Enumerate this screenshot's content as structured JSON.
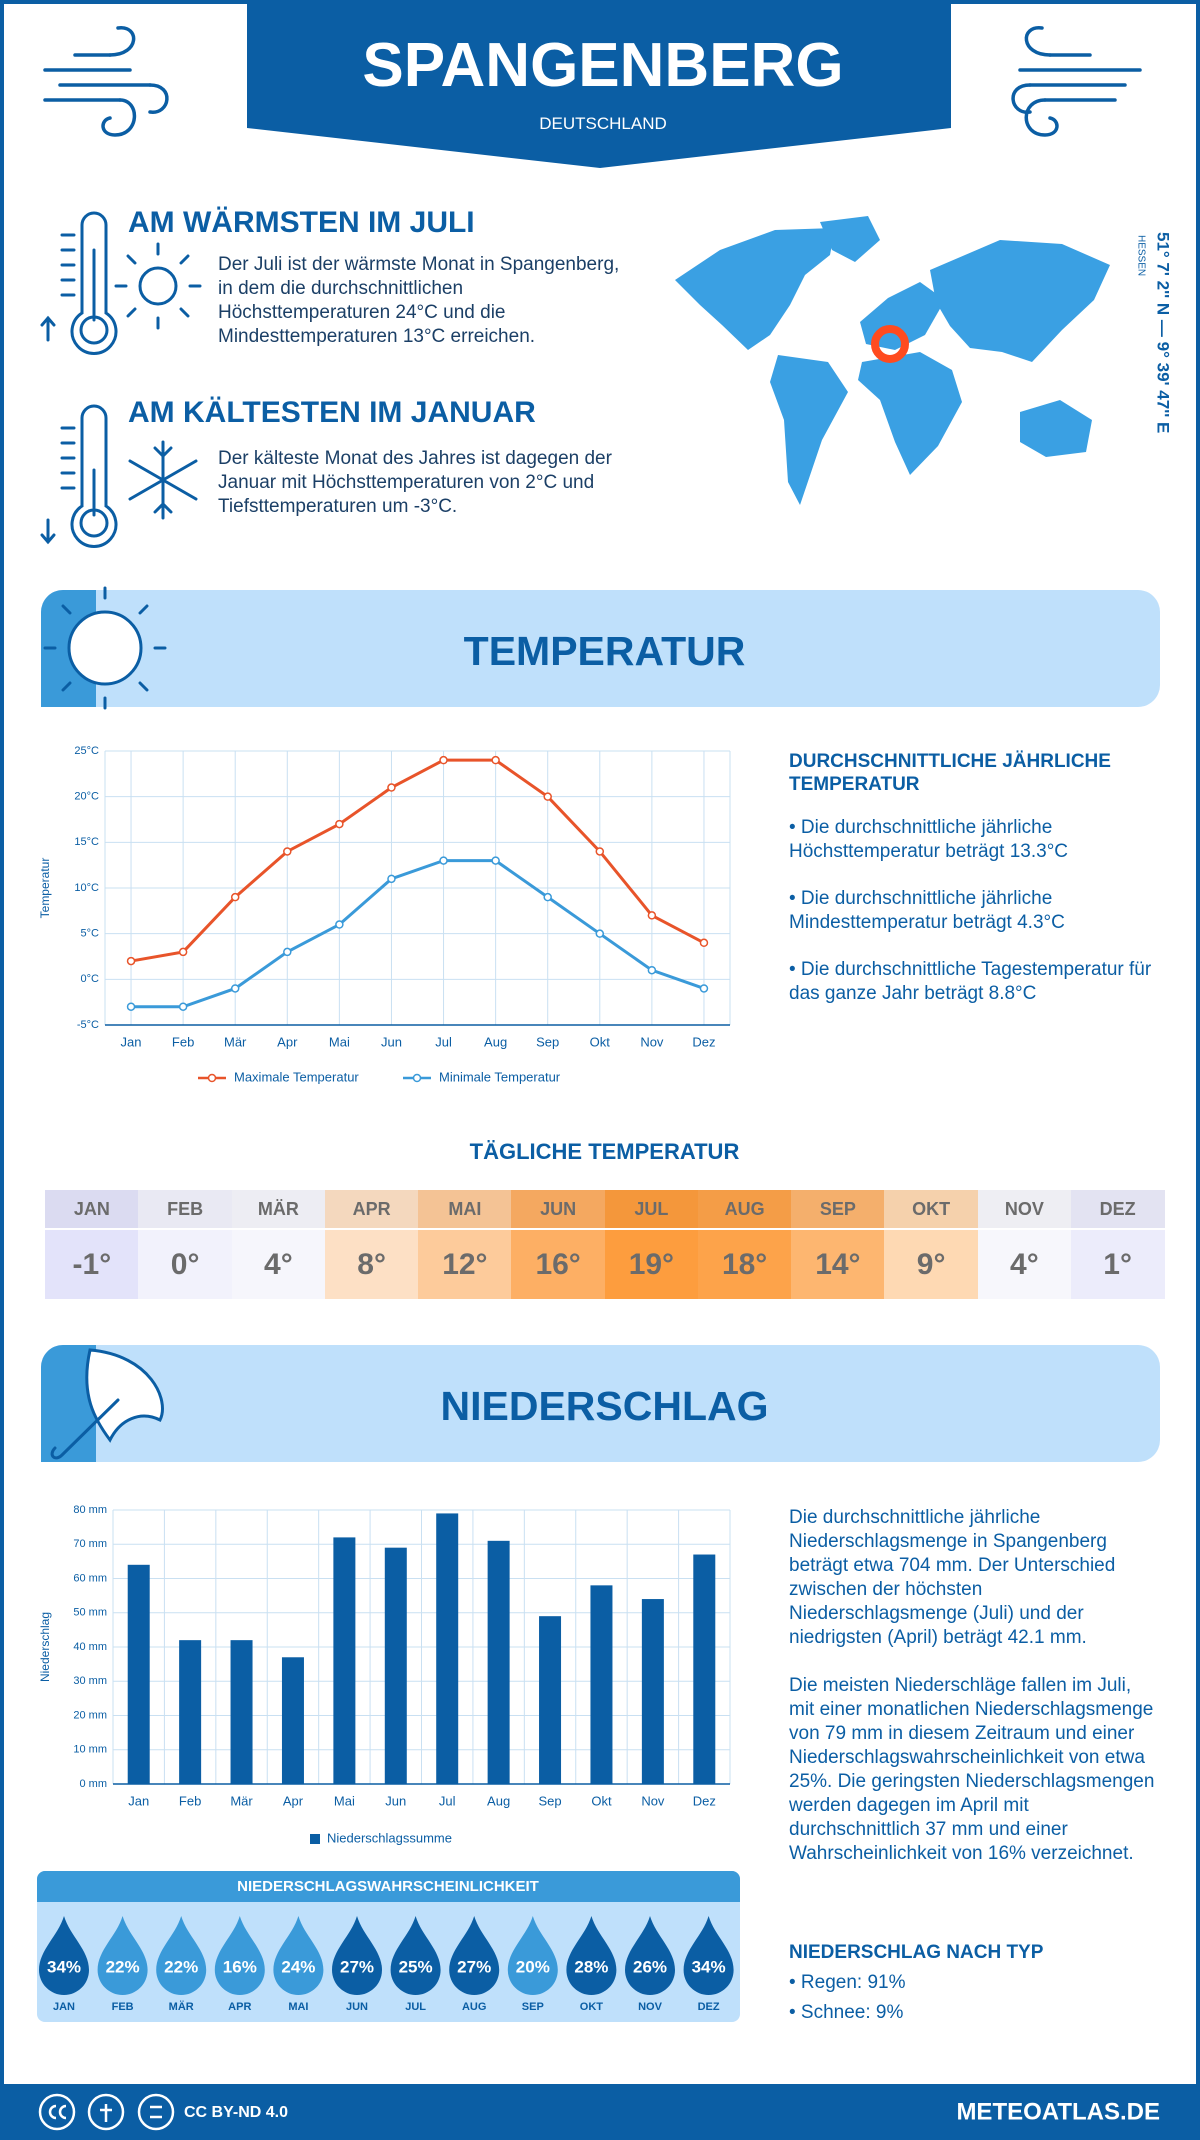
{
  "header": {
    "title": "SPANGENBERG",
    "subtitle": "DEUTSCHLAND"
  },
  "location": {
    "coordinates": "51° 7' 2'' N — 9° 39' 47'' E",
    "region": "HESSEN"
  },
  "warmest": {
    "title": "AM WÄRMSTEN IM JULI",
    "text": "Der Juli ist der wärmste Monat in Spangenberg, in dem die durchschnittlichen Höchsttemperaturen 24°C und die Mindesttemperaturen 13°C erreichen."
  },
  "coldest": {
    "title": "AM KÄLTESTEN IM JANUAR",
    "text": "Der kälteste Monat des Jahres ist dagegen der Januar mit Höchsttemperaturen von 2°C und Tiefsttemperaturen um -3°C."
  },
  "temperature_section": {
    "title": "TEMPERATUR",
    "summary_title": "DURCHSCHNITTLICHE JÄHRLICHE TEMPERATUR",
    "summary_items": [
      "• Die durchschnittliche jährliche Höchsttemperatur beträgt 13.3°C",
      "• Die durchschnittliche jährliche Mindesttemperatur beträgt 4.3°C",
      "• Die durchschnittliche Tagestemperatur für das ganze Jahr beträgt 8.8°C"
    ]
  },
  "chart_data": [
    {
      "type": "line",
      "ylabel": "Temperatur",
      "categories": [
        "Jan",
        "Feb",
        "Mär",
        "Apr",
        "Mai",
        "Jun",
        "Jul",
        "Aug",
        "Sep",
        "Okt",
        "Nov",
        "Dez"
      ],
      "series": [
        {
          "name": "Maximale Temperatur",
          "color": "#e8542a",
          "values": [
            2,
            3,
            9,
            14,
            17,
            21,
            24,
            24,
            20,
            14,
            7,
            4
          ]
        },
        {
          "name": "Minimale Temperatur",
          "color": "#3a9ad9",
          "values": [
            -3,
            -3,
            -1,
            3,
            6,
            11,
            13,
            13,
            9,
            5,
            1,
            -1
          ]
        }
      ],
      "ylim": [
        -5,
        25
      ],
      "yticks": [
        {
          "value": -5,
          "label": "-5°C"
        },
        {
          "value": 0,
          "label": "0°C"
        },
        {
          "value": 5,
          "label": "5°C"
        },
        {
          "value": 10,
          "label": "10°C"
        },
        {
          "value": 15,
          "label": "15°C"
        },
        {
          "value": 20,
          "label": "20°C"
        },
        {
          "value": 25,
          "label": "25°C"
        }
      ],
      "grid": true
    },
    {
      "type": "bar",
      "ylabel": "Niederschlag",
      "categories": [
        "Jan",
        "Feb",
        "Mär",
        "Apr",
        "Mai",
        "Jun",
        "Jul",
        "Aug",
        "Sep",
        "Okt",
        "Nov",
        "Dez"
      ],
      "series": [
        {
          "name": "Niederschlagssumme",
          "color": "#0b5ea4",
          "values": [
            64,
            42,
            42,
            37,
            72,
            69,
            79,
            71,
            49,
            58,
            54,
            67
          ]
        }
      ],
      "ylim": [
        0,
        80
      ],
      "yticks": [
        {
          "value": 0,
          "label": "0 mm"
        },
        {
          "value": 10,
          "label": "10 mm"
        },
        {
          "value": 20,
          "label": "20 mm"
        },
        {
          "value": 30,
          "label": "30 mm"
        },
        {
          "value": 40,
          "label": "40 mm"
        },
        {
          "value": 50,
          "label": "50 mm"
        },
        {
          "value": 60,
          "label": "60 mm"
        },
        {
          "value": 70,
          "label": "70 mm"
        },
        {
          "value": 80,
          "label": "80 mm"
        }
      ],
      "grid": true
    }
  ],
  "daily_temperature": {
    "title": "TÄGLICHE TEMPERATUR",
    "months": [
      "JAN",
      "FEB",
      "MÄR",
      "APR",
      "MAI",
      "JUN",
      "JUL",
      "AUG",
      "SEP",
      "OKT",
      "NOV",
      "DEZ"
    ],
    "values": [
      "-1°",
      "0°",
      "4°",
      "8°",
      "12°",
      "16°",
      "19°",
      "18°",
      "14°",
      "9°",
      "4°",
      "1°"
    ],
    "colors": [
      "#e3e3fa",
      "#f2f2fc",
      "#f6f6fc",
      "#fde0c5",
      "#fdcb9b",
      "#fdaf64",
      "#fd9d3e",
      "#fda34a",
      "#fdb670",
      "#fed9b3",
      "#f7f7fc",
      "#ececfb"
    ]
  },
  "precipitation_section": {
    "title": "NIEDERSCHLAG",
    "paragraphs": [
      "Die durchschnittliche jährliche Niederschlagsmenge in Spangenberg beträgt etwa 704 mm. Der Unterschied zwischen der höchsten Niederschlagsmenge (Juli) und der niedrigsten (April) beträgt 42.1 mm.",
      "Die meisten Niederschläge fallen im Juli, mit einer monatlichen Niederschlagsmenge von 79 mm in diesem Zeitraum und einer Niederschlagswahrscheinlichkeit von etwa 25%. Die geringsten Niederschlagsmengen werden dagegen im April mit durchschnittlich 37 mm und einer Wahrscheinlichkeit von 16% verzeichnet."
    ],
    "type_title": "NIEDERSCHLAG NACH TYP",
    "type_items": [
      "• Regen: 91%",
      "• Schnee: 9%"
    ]
  },
  "probability": {
    "title": "NIEDERSCHLAGSWAHRSCHEINLICHKEIT",
    "months": [
      "JAN",
      "FEB",
      "MÄR",
      "APR",
      "MAI",
      "JUN",
      "JUL",
      "AUG",
      "SEP",
      "OKT",
      "NOV",
      "DEZ"
    ],
    "labels": [
      "34%",
      "22%",
      "22%",
      "16%",
      "24%",
      "27%",
      "25%",
      "27%",
      "20%",
      "28%",
      "26%",
      "34%"
    ],
    "colors": [
      "#0b5ea4",
      "#3a9ad9",
      "#3a9ad9",
      "#3a9ad9",
      "#3a9ad9",
      "#0b5ea4",
      "#0b5ea4",
      "#0b5ea4",
      "#3a9ad9",
      "#0b5ea4",
      "#0b5ea4",
      "#0b5ea4"
    ]
  },
  "footer": {
    "license": "CC BY-ND 4.0",
    "site": "METEOATLAS.DE"
  }
}
